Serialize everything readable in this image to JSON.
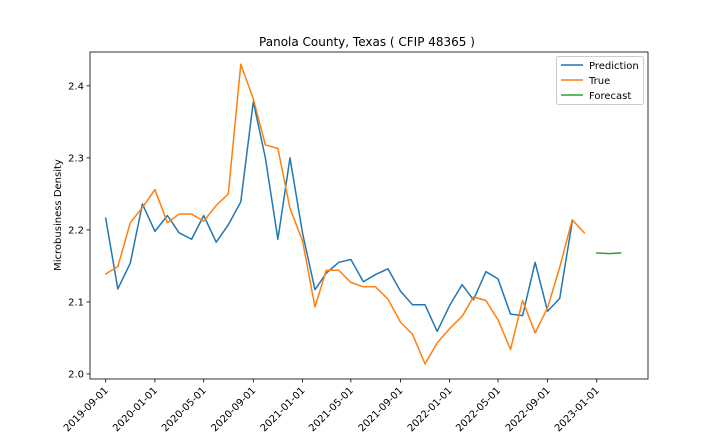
{
  "chart_data": {
    "type": "line",
    "title": "Panola County, Texas ( CFIP 48365 )",
    "xlabel": "",
    "ylabel": "Microbusiness Density",
    "xlim": [
      "2019-07-24",
      "2023-05-08"
    ],
    "ylim": [
      1.993,
      2.447
    ],
    "x_tick_labels": [
      "2019-09-01",
      "2020-01-01",
      "2020-05-01",
      "2020-09-01",
      "2021-01-01",
      "2021-05-01",
      "2021-09-01",
      "2022-01-01",
      "2022-05-01",
      "2022-09-01",
      "2023-01-01"
    ],
    "y_ticks": [
      2.0,
      2.1,
      2.2,
      2.3,
      2.4
    ],
    "y_tick_labels": [
      "2.0",
      "2.1",
      "2.2",
      "2.3",
      "2.4"
    ],
    "legend_position": "top-right",
    "grid": false,
    "series": [
      {
        "name": "Prediction",
        "color": "#1f77b4",
        "x": [
          "2019-09-01",
          "2019-10-01",
          "2019-11-01",
          "2019-12-01",
          "2020-01-01",
          "2020-02-01",
          "2020-03-01",
          "2020-04-01",
          "2020-05-01",
          "2020-06-01",
          "2020-07-01",
          "2020-08-01",
          "2020-09-01",
          "2020-10-01",
          "2020-11-01",
          "2020-12-01",
          "2021-01-01",
          "2021-02-01",
          "2021-03-01",
          "2021-04-01",
          "2021-05-01",
          "2021-06-01",
          "2021-07-01",
          "2021-08-01",
          "2021-09-01",
          "2021-10-01",
          "2021-11-01",
          "2021-12-01",
          "2022-01-01",
          "2022-02-01",
          "2022-03-01",
          "2022-04-01",
          "2022-05-01",
          "2022-06-01",
          "2022-07-01",
          "2022-08-01",
          "2022-09-01",
          "2022-10-01",
          "2022-11-01"
        ],
        "values": [
          2.216,
          2.118,
          2.154,
          2.236,
          2.198,
          2.22,
          2.196,
          2.187,
          2.22,
          2.183,
          2.207,
          2.239,
          2.378,
          2.3,
          2.187,
          2.3,
          2.196,
          2.117,
          2.14,
          2.155,
          2.159,
          2.128,
          2.138,
          2.146,
          2.115,
          2.096,
          2.096,
          2.059,
          2.095,
          2.124,
          2.103,
          2.142,
          2.132,
          2.083,
          2.081,
          2.155,
          2.087,
          2.105,
          2.211
        ]
      },
      {
        "name": "True",
        "color": "#ff7f0e",
        "x": [
          "2019-09-01",
          "2019-10-01",
          "2019-11-01",
          "2019-12-01",
          "2020-01-01",
          "2020-02-01",
          "2020-03-01",
          "2020-04-01",
          "2020-05-01",
          "2020-06-01",
          "2020-07-01",
          "2020-08-01",
          "2020-09-01",
          "2020-10-01",
          "2020-11-01",
          "2020-12-01",
          "2021-01-01",
          "2021-02-01",
          "2021-03-01",
          "2021-04-01",
          "2021-05-01",
          "2021-06-01",
          "2021-07-01",
          "2021-08-01",
          "2021-09-01",
          "2021-10-01",
          "2021-11-01",
          "2021-12-01",
          "2022-01-01",
          "2022-02-01",
          "2022-03-01",
          "2022-04-01",
          "2022-05-01",
          "2022-06-01",
          "2022-07-01",
          "2022-08-01",
          "2022-09-01",
          "2022-10-01",
          "2022-11-01",
          "2022-12-01"
        ],
        "values": [
          2.139,
          2.149,
          2.21,
          2.231,
          2.256,
          2.21,
          2.222,
          2.222,
          2.212,
          2.234,
          2.25,
          2.43,
          2.382,
          2.318,
          2.313,
          2.23,
          2.185,
          2.093,
          2.144,
          2.144,
          2.127,
          2.121,
          2.121,
          2.104,
          2.072,
          2.055,
          2.014,
          2.043,
          2.063,
          2.08,
          2.107,
          2.102,
          2.075,
          2.034,
          2.102,
          2.057,
          2.092,
          2.148,
          2.214,
          2.196
        ]
      },
      {
        "name": "Forecast",
        "color": "#2ca02c",
        "x": [
          "2023-01-01",
          "2023-02-01",
          "2023-03-01"
        ],
        "values": [
          2.168,
          2.167,
          2.168
        ]
      }
    ]
  }
}
